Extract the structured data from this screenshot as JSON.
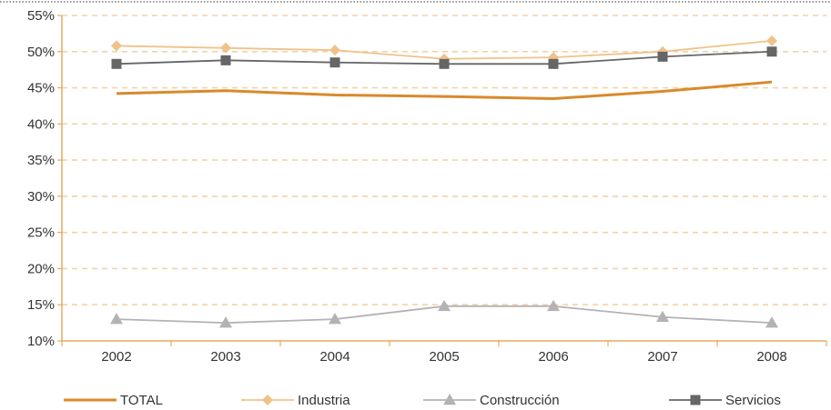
{
  "chart_data": {
    "type": "line",
    "categories": [
      "2002",
      "2003",
      "2004",
      "2005",
      "2006",
      "2007",
      "2008"
    ],
    "ylim": [
      10,
      55
    ],
    "yticks": [
      "10%",
      "15%",
      "20%",
      "25%",
      "30%",
      "35%",
      "40%",
      "45%",
      "50%",
      "55%"
    ],
    "grid": "horizontal dashed",
    "legend_position": "bottom",
    "series": [
      {
        "name": "TOTAL",
        "values": [
          44.2,
          44.6,
          44.0,
          43.8,
          43.5,
          44.5,
          45.8
        ],
        "color": "#d9892b",
        "marker": "none"
      },
      {
        "name": "Industria",
        "values": [
          50.8,
          50.5,
          50.2,
          49.0,
          49.2,
          50.0,
          51.5
        ],
        "color": "#f0c28a",
        "marker": "diamond"
      },
      {
        "name": "Construcción",
        "values": [
          13.0,
          12.5,
          13.0,
          14.8,
          14.8,
          13.3,
          12.5
        ],
        "color": "#b3b3b3",
        "marker": "triangle"
      },
      {
        "name": "Servicios",
        "values": [
          48.3,
          48.8,
          48.5,
          48.3,
          48.3,
          49.3,
          50.0
        ],
        "color": "#666666",
        "marker": "square"
      }
    ]
  }
}
